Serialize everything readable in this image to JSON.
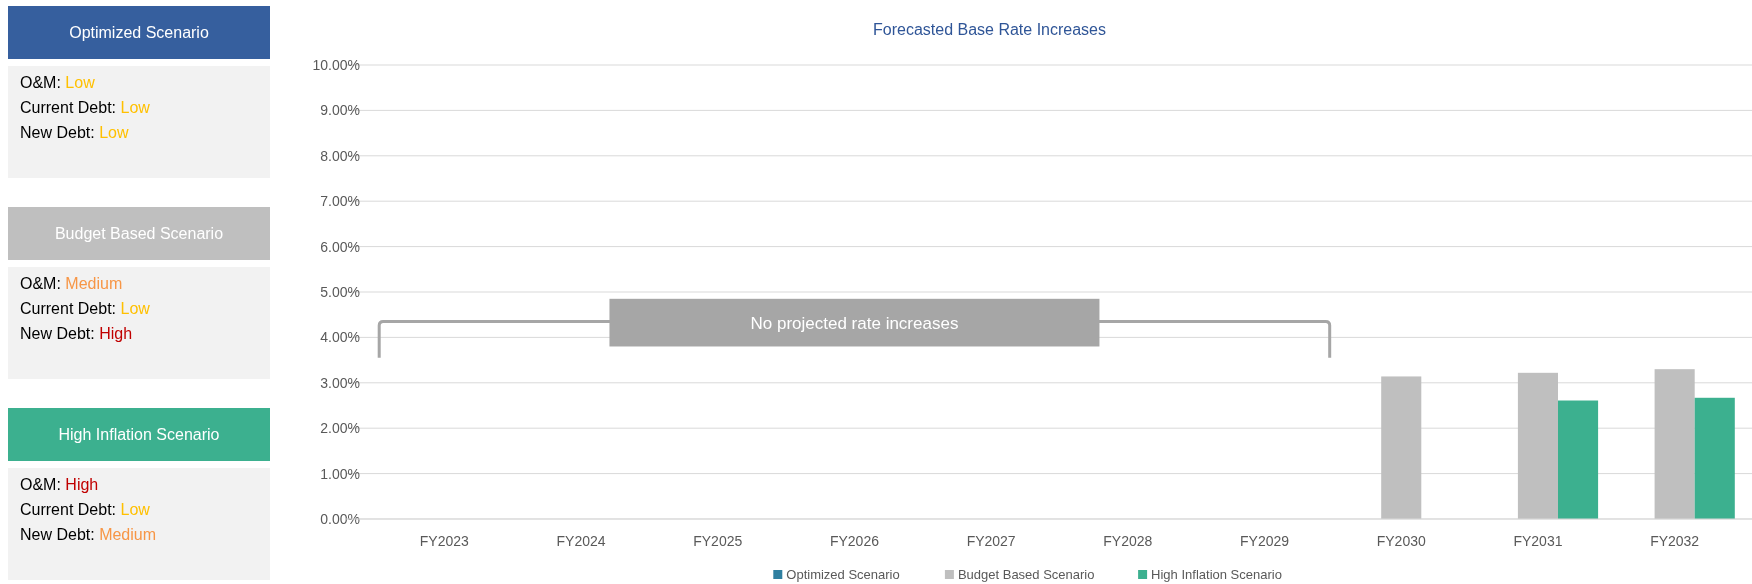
{
  "chart_data": [
    {
      "type": "other",
      "title": "Optimized Scenario",
      "color": "#365f9e",
      "annotations": [
        "O&M: Low",
        "Current Debt: Low",
        "New Debt: Low"
      ],
      "colors": [
        "#ffc000",
        "#ffc000",
        "#ffc000"
      ]
    },
    {
      "type": "other",
      "title": "Budget Based Scenario",
      "color": "#bfbfbf",
      "annotations": [
        "O&M: Medium",
        "Current Debt: Low",
        "New Debt: High"
      ],
      "colors": [
        "#f79646",
        "#ffc000",
        "#c00000"
      ]
    },
    {
      "type": "other",
      "title": "High Inflation Scenario",
      "color": "#3cb08f",
      "annotations": [
        "O&M: High",
        "Current Debt: Low",
        "New Debt: Medium"
      ],
      "colors": [
        "#c00000",
        "#ffc000",
        "#f79646"
      ]
    },
    {
      "type": "bar",
      "title": "Forecasted Base Rate Increases",
      "categories": [
        "FY2023",
        "FY2024",
        "FY2025",
        "FY2026",
        "FY2027",
        "FY2028",
        "FY2029",
        "FY2030",
        "FY2031",
        "FY2032"
      ],
      "series": [
        {
          "name": "Optimized Scenario",
          "color": "#2f7fa0",
          "values": [
            0,
            0,
            0,
            0,
            0,
            0,
            0,
            0,
            0,
            0
          ]
        },
        {
          "name": "Budget Based Scenario",
          "color": "#bfbfbf",
          "values": [
            0,
            0,
            0,
            0,
            0,
            0,
            0,
            3.14,
            3.22,
            3.3
          ]
        },
        {
          "name": "High Inflation Scenario",
          "color": "#3cb08f",
          "values": [
            0,
            0,
            0,
            0,
            0,
            0,
            0,
            0,
            2.61,
            2.67
          ]
        }
      ],
      "ylim": [
        0,
        10
      ],
      "yticks": [
        {
          "value": 0,
          "label": "0.00%"
        },
        {
          "value": 1,
          "label": "1.00%"
        },
        {
          "value": 2,
          "label": "2.00%"
        },
        {
          "value": 3,
          "label": "3.00%"
        },
        {
          "value": 4,
          "label": "4.00%"
        },
        {
          "value": 5,
          "label": "5.00%"
        },
        {
          "value": 6,
          "label": "6.00%"
        },
        {
          "value": 7,
          "label": "7.00%"
        },
        {
          "value": 8,
          "label": "8.00%"
        },
        {
          "value": 9,
          "label": "9.00%"
        },
        {
          "value": 10,
          "label": "10.00%"
        }
      ],
      "grid": "y",
      "legend": "bottom",
      "annotations": [
        "No projected rate increases"
      ]
    }
  ]
}
